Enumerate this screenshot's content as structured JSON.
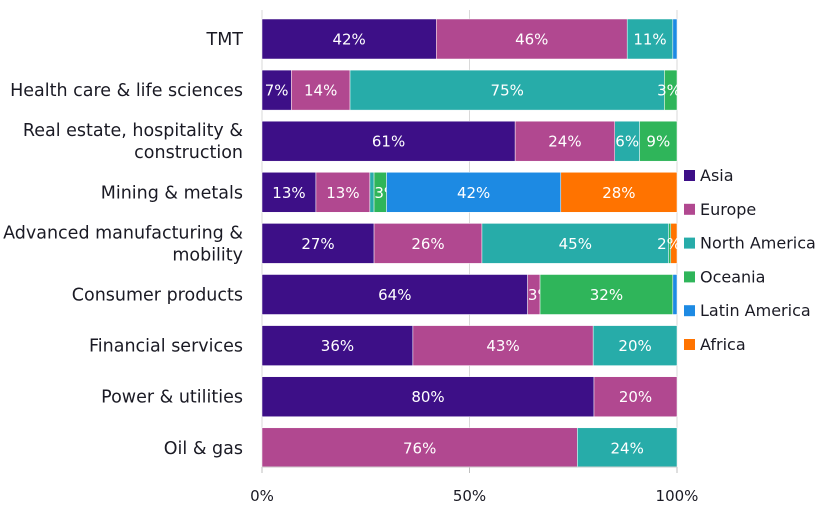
{
  "chart_data": {
    "type": "bar",
    "orientation": "horizontal",
    "stacked": true,
    "normalized": true,
    "title": "",
    "xlabel": "",
    "ylabel": "",
    "xlim": [
      0,
      100
    ],
    "x_ticks": [
      "0%",
      "50%",
      "100%"
    ],
    "grid": true,
    "legend_position": "right",
    "categories": [
      "TMT",
      "Health care & life sciences",
      "Real estate, hospitality & construction",
      "Mining & metals",
      "Advanced manufacturing & mobility",
      "Consumer products",
      "Financial services",
      "Power & utilities",
      "Oil & gas"
    ],
    "category_lines": [
      [
        "TMT"
      ],
      [
        "Health care & life sciences"
      ],
      [
        "Real estate, hospitality &",
        "construction"
      ],
      [
        "Mining & metals"
      ],
      [
        "Advanced manufacturing &",
        "mobility"
      ],
      [
        "Consumer products"
      ],
      [
        "Financial services"
      ],
      [
        "Power & utilities"
      ],
      [
        "Oil & gas"
      ]
    ],
    "series": [
      {
        "name": "Asia",
        "color": "#3d0f87",
        "values": [
          42,
          7,
          61,
          13,
          27,
          64,
          36,
          80,
          0
        ],
        "labels": [
          "42%",
          "7%",
          "61%",
          "13%",
          "27%",
          "64%",
          "36%",
          "80%",
          ""
        ]
      },
      {
        "name": "Europe",
        "color": "#b14890",
        "values": [
          46,
          14,
          24,
          13,
          26,
          3,
          43,
          20,
          76
        ],
        "labels": [
          "46%",
          "14%",
          "24%",
          "13%",
          "26%",
          "3%",
          "43%",
          "20%",
          "76%"
        ]
      },
      {
        "name": "North America",
        "color": "#27aca9",
        "values": [
          11,
          75,
          6,
          1,
          45,
          0,
          20,
          0,
          24
        ],
        "labels": [
          "11%",
          "75%",
          "6%",
          "",
          "45%",
          "",
          "20%",
          "",
          "24%"
        ]
      },
      {
        "name": "Oceania",
        "color": "#2fb55a",
        "values": [
          0,
          3,
          9,
          3,
          0.5,
          32,
          0,
          0,
          0
        ],
        "labels": [
          "",
          "3%",
          "9%",
          "3%",
          "",
          "32%",
          "",
          "",
          ""
        ]
      },
      {
        "name": "Latin America",
        "color": "#1d8ae3",
        "values": [
          1,
          0,
          0,
          42,
          0,
          1,
          0,
          0,
          0
        ],
        "labels": [
          "",
          "",
          "",
          "42%",
          "",
          "",
          "",
          "",
          ""
        ]
      },
      {
        "name": "Africa",
        "color": "#ff7300",
        "values": [
          0,
          0,
          0,
          28,
          1.5,
          0,
          0,
          0,
          0
        ],
        "labels": [
          "",
          "",
          "",
          "28%",
          "2%",
          "",
          "",
          "",
          ""
        ]
      }
    ]
  }
}
